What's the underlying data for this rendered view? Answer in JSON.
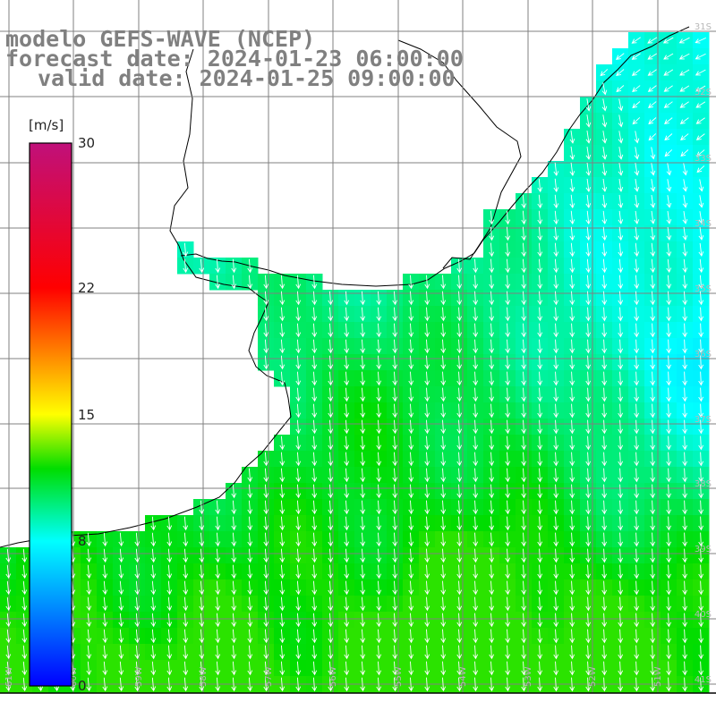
{
  "title": {
    "line1": "modelo GEFS-WAVE (NCEP)",
    "line2": "forecast date: 2024-01-23 06:00:00",
    "line3": "valid date: 2024-01-25 09:00:00"
  },
  "colorbar": {
    "unit": "[m/s]",
    "ticks": [
      {
        "label": "30",
        "value": 30
      },
      {
        "label": "22",
        "value": 22
      },
      {
        "label": "15",
        "value": 15
      },
      {
        "label": "8",
        "value": 8
      },
      {
        "label": "0",
        "value": 0
      }
    ],
    "range": [
      0,
      30
    ],
    "stops": [
      {
        "value": 0,
        "color": "#0000ff"
      },
      {
        "value": 8,
        "color": "#00ffff"
      },
      {
        "value": 12,
        "color": "#00dd00"
      },
      {
        "value": 15,
        "color": "#ffff00"
      },
      {
        "value": 22,
        "color": "#ff0000"
      },
      {
        "value": 30,
        "color": "#c0107a"
      }
    ]
  },
  "map": {
    "lat_labels": [
      "31S",
      "32S",
      "33S",
      "34S",
      "35S",
      "36S",
      "37S",
      "38S",
      "39S",
      "40S",
      "41S"
    ],
    "lon_labels": [
      "61W",
      "60W",
      "59W",
      "58W",
      "57W",
      "56W",
      "55W",
      "54W",
      "53W",
      "52W",
      "51W"
    ],
    "gridline_color": "#808080",
    "land_color": "#ffffff",
    "arrow_color": "#ffffff",
    "coast_color": "#000000",
    "arrow_direction": "southward"
  }
}
